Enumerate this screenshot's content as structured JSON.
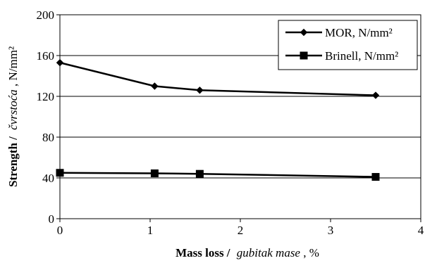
{
  "chart_data": {
    "type": "line",
    "title": "",
    "xlabel": {
      "bold": "Mass loss /",
      "italic": "gubitak mase",
      "suffix": ", %"
    },
    "ylabel": {
      "bold": "Strength /",
      "italic": "čvrstoća",
      "suffix": ", N/mm²"
    },
    "xlim": [
      0,
      4
    ],
    "ylim": [
      0,
      200
    ],
    "x_ticks": [
      {
        "value": 0,
        "label": "0"
      },
      {
        "value": 1,
        "label": "1"
      },
      {
        "value": 2,
        "label": "2"
      },
      {
        "value": 3,
        "label": "3"
      },
      {
        "value": 4,
        "label": "4"
      }
    ],
    "y_ticks": [
      {
        "value": 0,
        "label": "0"
      },
      {
        "value": 40,
        "label": "40"
      },
      {
        "value": 80,
        "label": "80"
      },
      {
        "value": 120,
        "label": "120"
      },
      {
        "value": 160,
        "label": "160"
      },
      {
        "value": 200,
        "label": "200"
      }
    ],
    "grid": "horizontal",
    "legend_position": "top-right",
    "series": [
      {
        "name": "MOR, N/mm²",
        "marker": "diamond",
        "color": "#000000",
        "points": [
          {
            "x": 0,
            "y": 153
          },
          {
            "x": 1.05,
            "y": 130
          },
          {
            "x": 1.55,
            "y": 126
          },
          {
            "x": 3.5,
            "y": 121
          }
        ]
      },
      {
        "name": "Brinell, N/mm²",
        "marker": "square",
        "color": "#000000",
        "points": [
          {
            "x": 0,
            "y": 45
          },
          {
            "x": 1.05,
            "y": 44.5
          },
          {
            "x": 1.55,
            "y": 44
          },
          {
            "x": 3.5,
            "y": 41
          }
        ]
      }
    ]
  }
}
